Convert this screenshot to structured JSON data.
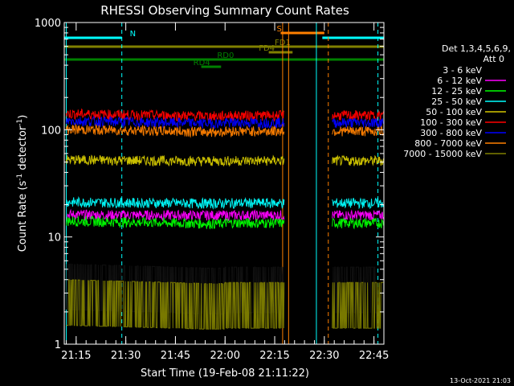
{
  "chart_data": {
    "type": "line",
    "title": "RHESSI Observing Summary Count Rates",
    "xlabel": "Start Time (19-Feb-08 21:11:22)",
    "ylabel": "Count Rate (s",
    "ylabel_sup": "-1",
    "ylabel_tail": " detector",
    "ylabel_tail_sup": "-1",
    "ylabel_close": ")",
    "yscale": "log",
    "ylim": [
      1,
      1000
    ],
    "xlim_minutes": [
      21.19,
      22.8
    ],
    "x_ticks": [
      "21:15",
      "21:30",
      "21:45",
      "22:00",
      "22:15",
      "22:30",
      "22:45"
    ],
    "x_tick_values": [
      21.25,
      21.5,
      21.75,
      22.0,
      22.25,
      22.5,
      22.75
    ],
    "y_ticks": [
      "1",
      "10",
      "100",
      "1000"
    ],
    "y_tick_values": [
      1,
      10,
      100,
      1000
    ],
    "legend_title_1": "Det 1,3,4,5,6,9,",
    "legend_title_2": "Att 0",
    "legend_position": "top-right",
    "footer": "13-Oct-2021 21:03",
    "series": [
      {
        "name": "3 - 6 keV",
        "color": "#000000",
        "level": 3.5,
        "low": 2.0
      },
      {
        "name": "6 - 12 keV",
        "color": "#ff00ff",
        "level": 16,
        "low": 15
      },
      {
        "name": "12 - 25 keV",
        "color": "#00ff00",
        "level": 14,
        "low": 10
      },
      {
        "name": "25 - 50 keV",
        "color": "#00ffff",
        "level": 21,
        "low": 18
      },
      {
        "name": "50 - 100 keV",
        "color": "#d4c800",
        "level": 52,
        "low": 45
      },
      {
        "name": "100 - 300 keV",
        "color": "#ff0000",
        "level": 140,
        "low": 105
      },
      {
        "name": "300 - 800 keV",
        "color": "#0000ff",
        "level": 120,
        "low": 90
      },
      {
        "name": "800 - 7000 keV",
        "color": "#ff8000",
        "level": 100,
        "low": 75
      },
      {
        "name": "7000 - 15000 keV",
        "color": "#808000",
        "level": 2.5,
        "low": 1.5
      }
    ],
    "flags": [
      {
        "label": "N",
        "color": "#00ffff",
        "segments": [
          [
            21.19,
            21.48
          ],
          [
            22.49,
            22.8
          ]
        ]
      },
      {
        "label": "S",
        "color": "#ff8000",
        "segments": [
          [
            22.28,
            22.5
          ]
        ]
      },
      {
        "label": "FD1",
        "color": "#808000",
        "segments": [
          [
            21.19,
            22.8
          ]
        ]
      },
      {
        "label": "FD4",
        "color": "#808000",
        "segments": [
          [
            22.22,
            22.34
          ]
        ]
      },
      {
        "label": "RD0",
        "color": "#008000",
        "segments": [
          [
            21.19,
            22.8
          ]
        ]
      },
      {
        "label": "RD4",
        "color": "#008000",
        "segments": [
          [
            21.88,
            21.98
          ]
        ]
      }
    ],
    "vertical_lines": [
      {
        "color": "#00ffff",
        "style": "dashed",
        "x": 21.48
      },
      {
        "color": "#ff8000",
        "style": "solid",
        "x": 22.29
      },
      {
        "color": "#ff8000",
        "style": "solid",
        "x": 22.32
      },
      {
        "color": "#00ffff",
        "style": "solid",
        "x": 22.46
      },
      {
        "color": "#ff8000",
        "style": "dashed",
        "x": 22.52
      },
      {
        "color": "#00ffff",
        "style": "dashed",
        "x": 22.77
      },
      {
        "color": "#00ffff",
        "style": "solid",
        "x": 21.2
      }
    ]
  }
}
